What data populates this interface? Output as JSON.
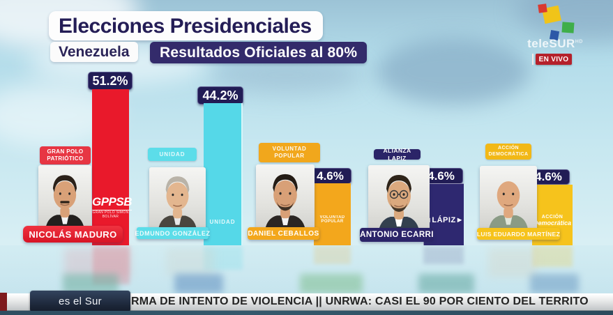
{
  "header": {
    "title": "Elecciones Presidenciales",
    "subtitle_left": "Venezuela",
    "subtitle_right": "Resultados Oficiales al 80%"
  },
  "branding": {
    "network": "teleSUR",
    "hd": "HD",
    "live_badge": "EN VIVO",
    "slogan": "es el Sur"
  },
  "chart_data": {
    "type": "bar",
    "title": "Elecciones Presidenciales — Resultados Oficiales al 80%",
    "unit": "%",
    "categories": [
      "Nicolás Maduro",
      "Edmundo González",
      "Daniel Ceballos",
      "Antonio Ecarri",
      "Luis Eduardo Martínez"
    ],
    "values": [
      51.2,
      44.2,
      4.6,
      4.6,
      4.6
    ],
    "value_labels": [
      "51.2%",
      "44.2%",
      "4.6%",
      "4.6%",
      "4.6%"
    ],
    "bar_colors": [
      "#e9192b",
      "#55d8e8",
      "#f3a71c",
      "#2e2870",
      "#f6c31c"
    ],
    "note": "bar heights not drawn to scale for the 4.6% candidates"
  },
  "candidates": [
    {
      "name": "NICOLÁS MADURO",
      "value_label": "51.2%",
      "party_badge_line1": "GRAN POLO",
      "party_badge_line2": "PATRIÓTICO",
      "bar_logo_main": "GPPSB",
      "bar_logo_sub": "GRAN POLO SIMÓN BOLÍVAR",
      "bar_color": "#e9192b"
    },
    {
      "name": "EDMUNDO GONZÁLEZ",
      "value_label": "44.2%",
      "party_badge_line1": "UNIDAD",
      "party_badge_line2": "",
      "bar_logo_main": "UNIDAD",
      "bar_logo_sub": "",
      "bar_color": "#55d8e8"
    },
    {
      "name": "DANIEL CEBALLOS",
      "value_label": "4.6%",
      "party_badge_line1": "VOLUNTAD",
      "party_badge_line2": "POPULAR",
      "bar_logo_main": "VOLUNTAD POPULAR",
      "bar_logo_sub": "",
      "bar_color": "#f3a71c"
    },
    {
      "name": "ANTONIO ECARRI",
      "value_label": "4.6%",
      "party_badge_line1": "ALIANZA LAPIZ",
      "party_badge_line2": "",
      "bar_logo_main": "◄LÁPIZ►",
      "bar_logo_sub": "",
      "bar_color": "#2e2870"
    },
    {
      "name": "LUIS EDUARDO MARTÍNEZ",
      "value_label": "4.6%",
      "party_badge_line1": "ACCIÓN",
      "party_badge_line2": "DEMOCRÁTICA",
      "bar_logo_main": "ACCIÓN",
      "bar_logo_sub": "Democrática",
      "bar_color": "#f6c31c"
    }
  ],
  "ticker": {
    "headline": "RMA DE INTENTO DE VIOLENCIA  ||  UNRWA: CASI EL 90 POR CIENTO DEL TERRITO"
  },
  "colors": {
    "accent_navy": "#211c55",
    "header_box_navy": "#332b6b",
    "live_red": "#b5212b",
    "ticker_silver": "#d9dbdc",
    "slogan_navy": "#1c2638"
  }
}
